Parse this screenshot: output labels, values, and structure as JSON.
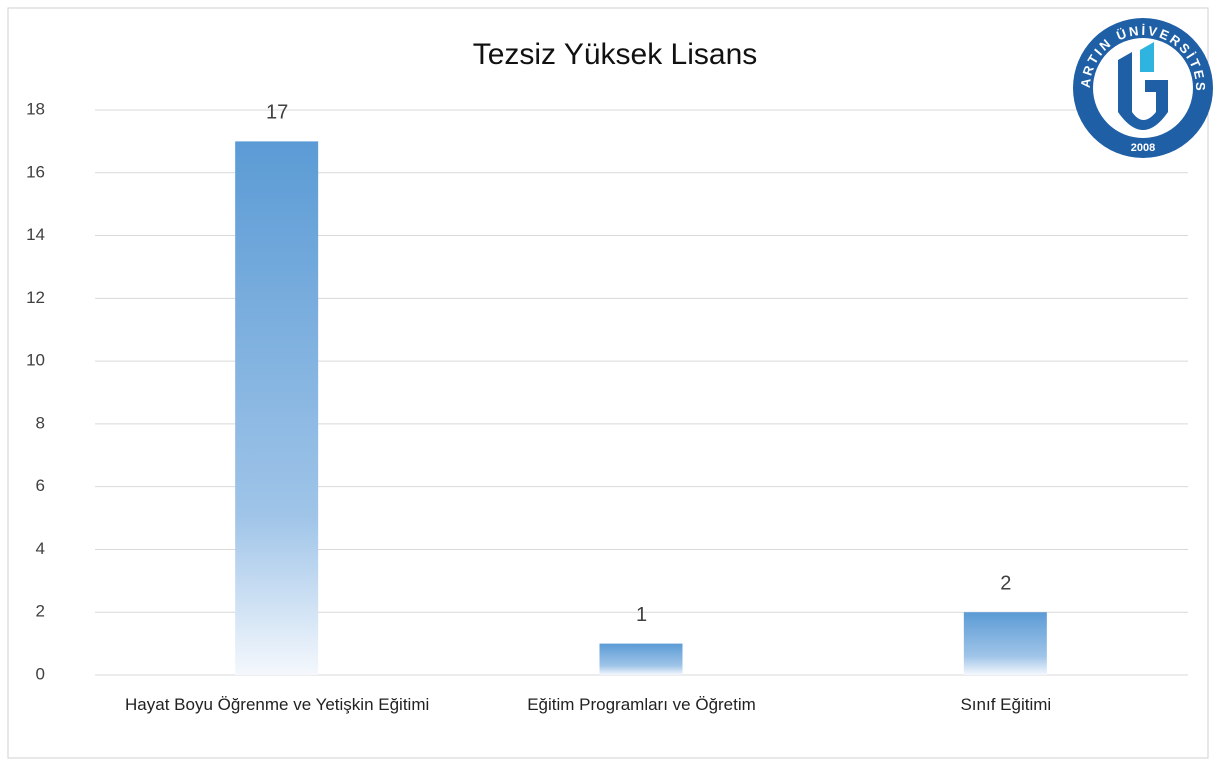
{
  "chart_data": {
    "type": "bar",
    "title": "Tezsiz  Yüksek Lisans",
    "categories": [
      "Hayat Boyu Öğrenme ve Yetişkin Eğitimi",
      "Eğitim Programları ve Öğretim",
      "Sınıf Eğitimi"
    ],
    "values": [
      17,
      1,
      2
    ],
    "color": "#5b9bd5",
    "ylim": [
      0,
      18
    ],
    "yticks": [
      0,
      2,
      4,
      6,
      8,
      10,
      12,
      14,
      16,
      18
    ],
    "grid": true,
    "logo": {
      "name": "BARTIN ÜNİVERSİTESİ",
      "year": "2008"
    }
  }
}
